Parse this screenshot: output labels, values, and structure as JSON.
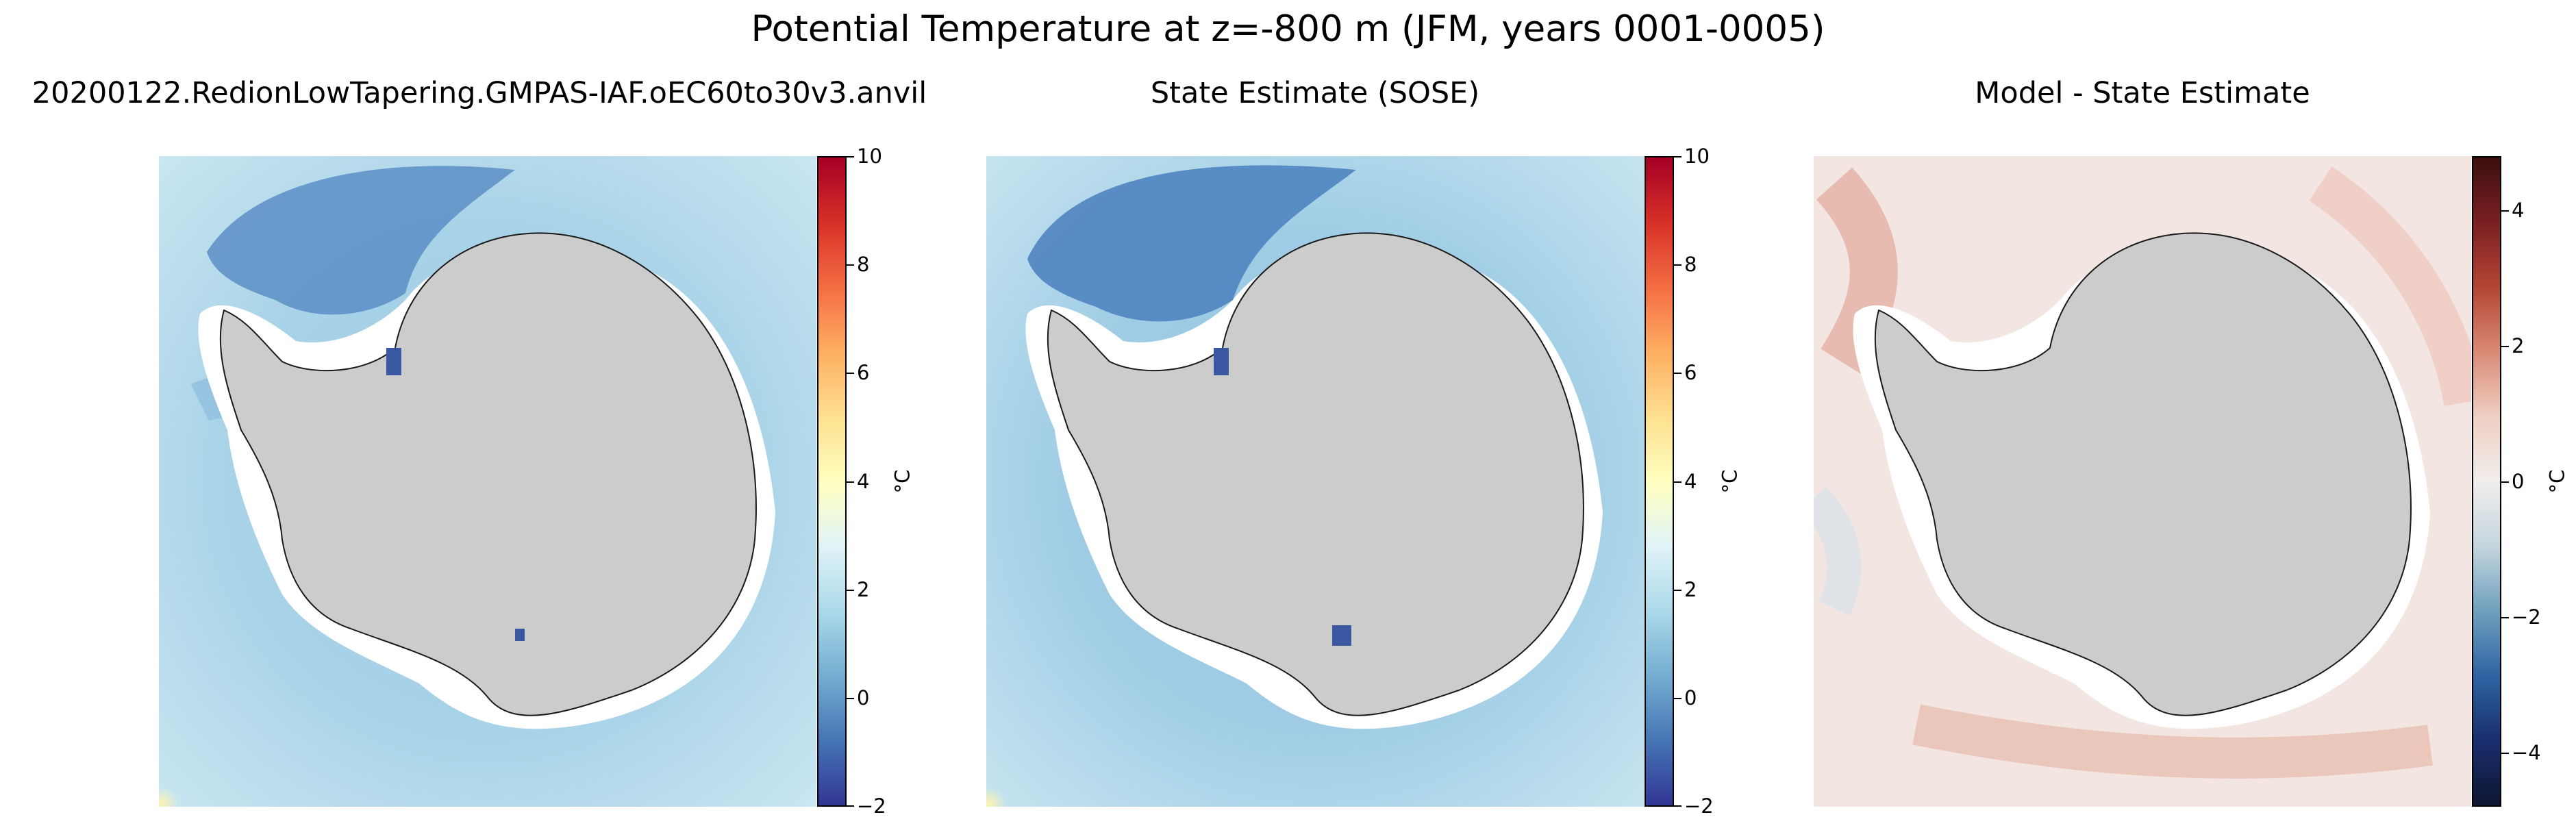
{
  "figure": {
    "title": "Potential Temperature at z=-800 m (JFM, years 0001-0005)"
  },
  "panels": [
    {
      "title": "20200122.RedionLowTapering.GMPAS-IAF.oEC60to30v3.anvil",
      "colormap": "RdYlBu_r",
      "colorbar": {
        "ticks": [
          "10",
          "8",
          "6",
          "4",
          "2",
          "0",
          "−2"
        ],
        "unit": "°C",
        "range": [
          -2,
          10
        ]
      },
      "colors": {
        "ocean_light": "#c9e6f1",
        "ocean_mid": "#9ccbe3",
        "ocean_dark": "#4b7fbd",
        "land": "#cccccc"
      }
    },
    {
      "title": "State Estimate (SOSE)",
      "colormap": "RdYlBu_r",
      "colorbar": {
        "ticks": [
          "10",
          "8",
          "6",
          "4",
          "2",
          "0",
          "−2"
        ],
        "unit": "°C",
        "range": [
          -2,
          10
        ]
      },
      "colors": {
        "ocean_light": "#c9e6f1",
        "ocean_mid": "#9ccbe3",
        "ocean_dark": "#4b7fbd",
        "land": "#cccccc"
      }
    },
    {
      "title": "Model - State Estimate",
      "colormap": "balance",
      "colorbar": {
        "ticks": [
          "4",
          "2",
          "0",
          "−2",
          "−4"
        ],
        "unit": "°C",
        "range": [
          -5,
          5
        ]
      },
      "colors": {
        "ocean_light": "#f3e3df",
        "ocean_mid": "#ecc8be",
        "ocean_dark": "#d9a090",
        "land": "#cccccc"
      }
    }
  ]
}
